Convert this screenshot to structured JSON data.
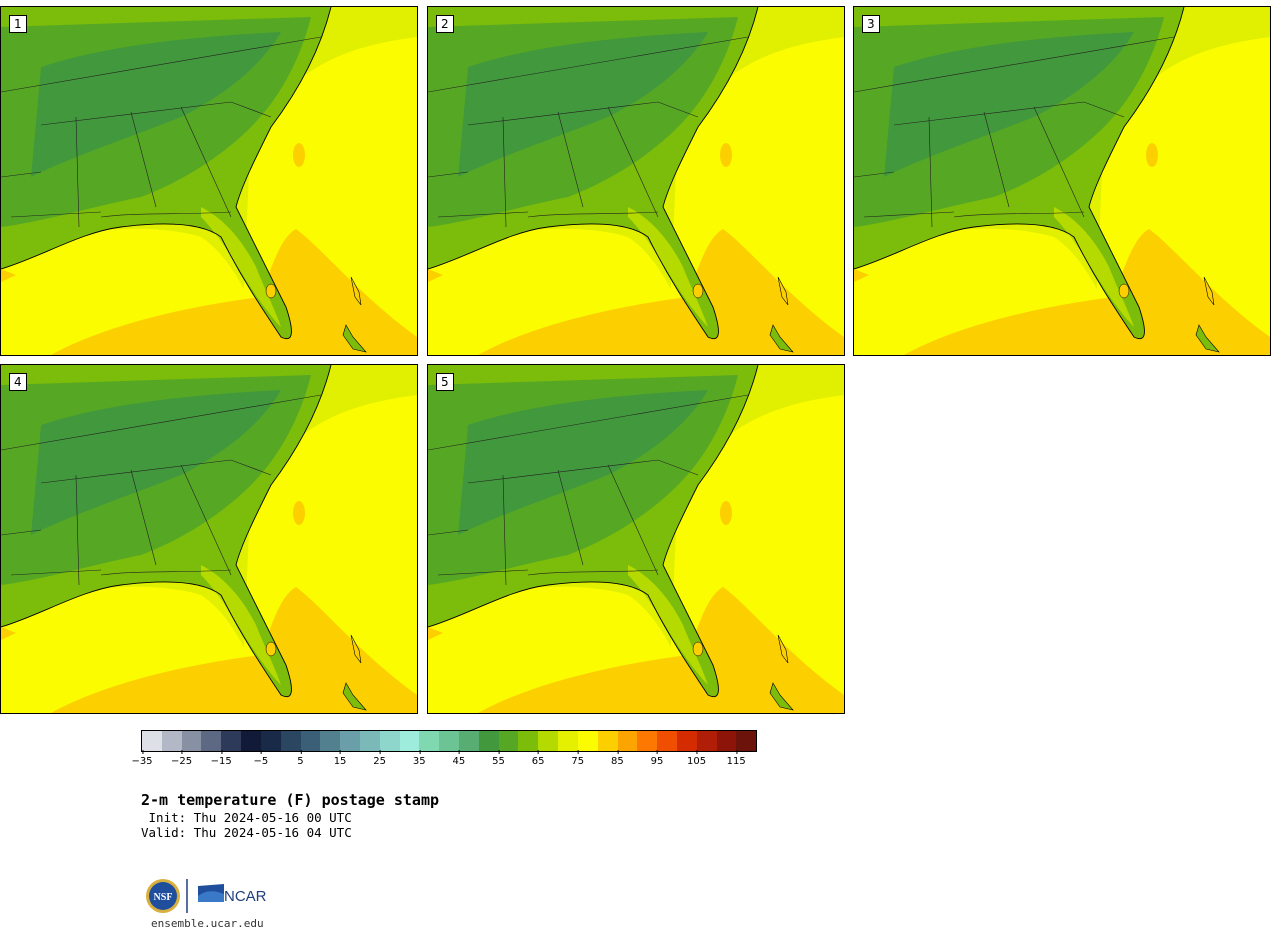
{
  "panels": [
    {
      "label": "1"
    },
    {
      "label": "2"
    },
    {
      "label": "3"
    },
    {
      "label": "4"
    },
    {
      "label": "5"
    }
  ],
  "colorbar": {
    "colors": [
      "#dde0e6",
      "#b3b8c6",
      "#8890a4",
      "#5d6882",
      "#2e3a5a",
      "#111a36",
      "#182a48",
      "#2b4660",
      "#3a5f76",
      "#52808e",
      "#6a9ea8",
      "#7ab9b8",
      "#8ed6cc",
      "#9eecdc",
      "#80d8b0",
      "#6cc494",
      "#58ae72",
      "#42983c",
      "#56a824",
      "#7cbc0a",
      "#b4da00",
      "#e4f000",
      "#fcfc00",
      "#fcd000",
      "#fca400",
      "#fc7800",
      "#f04e00",
      "#d42c00",
      "#b01e08",
      "#8c1408",
      "#6c140c"
    ],
    "ticks": [
      "−35",
      "−25",
      "−15",
      "−5",
      "5",
      "15",
      "25",
      "35",
      "45",
      "55",
      "65",
      "75",
      "85",
      "95",
      "105",
      "115"
    ]
  },
  "title": "2-m temperature (F) postage stamp",
  "init": " Init: Thu 2024-05-16 00 UTC",
  "valid": "Valid: Thu 2024-05-16 04 UTC",
  "logos": {
    "nsf": "NSF",
    "ncar": "NCAR"
  },
  "credit": "ensemble.ucar.edu"
}
